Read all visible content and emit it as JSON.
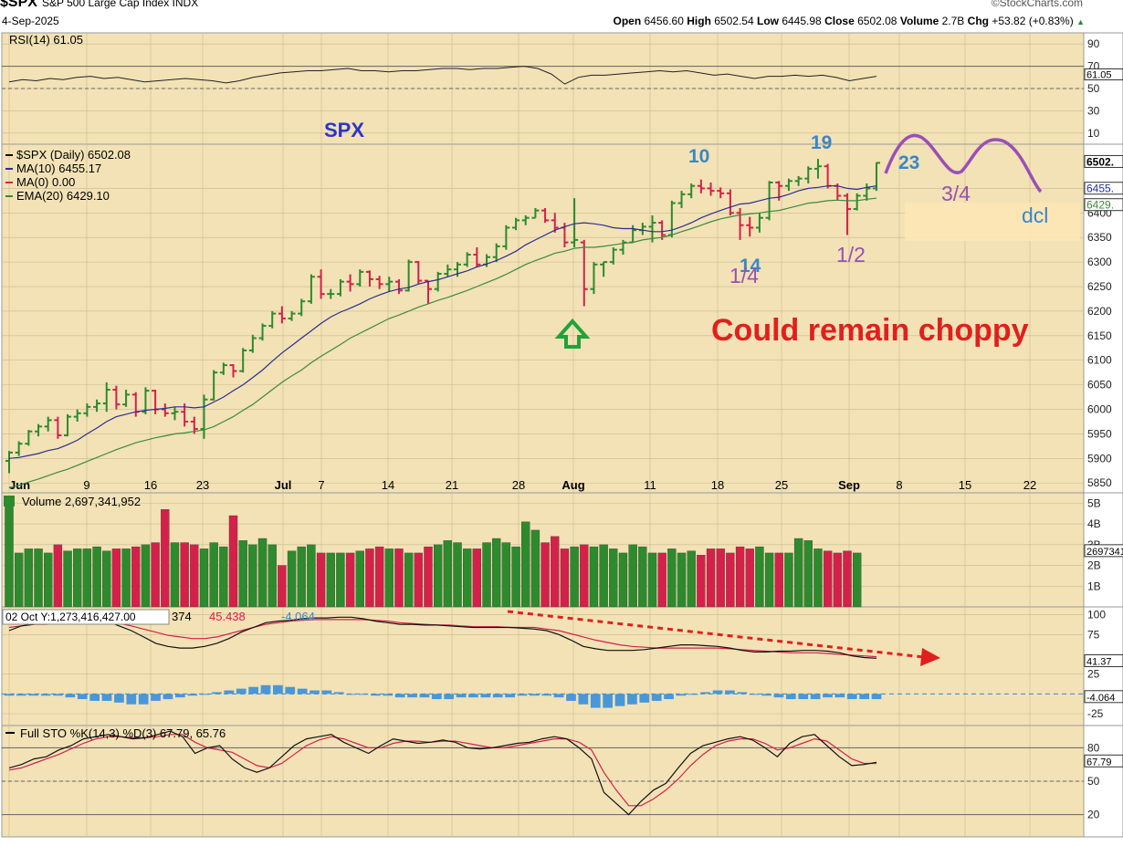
{
  "header": {
    "symbol": "$SPX",
    "name": "S&P 500 Large Cap Index  INDX",
    "date": "4-Sep-2025",
    "open_label": "Open",
    "open": "6456.60",
    "high_label": "High",
    "high": "6502.54",
    "low_label": "Low",
    "low": "6445.98",
    "close_label": "Close",
    "close": "6502.08",
    "volume_label": "Volume",
    "volume": "2.7B",
    "chg_label": "Chg",
    "chg": "+53.82 (+0.83%)",
    "brand": "©StockCharts.com"
  },
  "colors": {
    "up": "#2d8a2d",
    "down": "#d4214a",
    "panel_bg": "#f2e2b6",
    "ma10": "#2a2f8f",
    "ema20": "#3d8a3d",
    "annot_purple": "#9b4fb5",
    "annot_blue": "#3a86c8",
    "annot_red": "#e0201c"
  },
  "chart_data": [
    {
      "type": "line",
      "panel": "RSI",
      "legend": "RSI(14) 61.05",
      "y_ticks": [
        "90",
        "70",
        "50",
        "30",
        "10"
      ],
      "last_label": "61.05",
      "ylim": [
        0,
        100
      ],
      "values": [
        56,
        58,
        57,
        59,
        58,
        60,
        61,
        59,
        60,
        58,
        56,
        57,
        58,
        59,
        58,
        57,
        55,
        57,
        60,
        62,
        64,
        65,
        66,
        66,
        67,
        68,
        66,
        66,
        65,
        66,
        66,
        67,
        68,
        68,
        67,
        68,
        68,
        69,
        70,
        68,
        63,
        54,
        60,
        62,
        62,
        63,
        64,
        65,
        66,
        65,
        66,
        64,
        62,
        63,
        61,
        59,
        61,
        61,
        62,
        61,
        62,
        60,
        57,
        59,
        61
      ]
    },
    {
      "type": "candlestick",
      "panel": "price",
      "title": "SPX",
      "legend": [
        "$SPX (Daily) 6502.08",
        "MA(10) 6455.17",
        "MA(0) 0.00",
        "EMA(20) 6429.10"
      ],
      "x_labels": [
        "Jun",
        "9",
        "16",
        "23",
        "Jul",
        "7",
        "14",
        "21",
        "28",
        "Aug",
        "11",
        "18",
        "25",
        "Sep",
        "8",
        "15",
        "22"
      ],
      "y_ticks": [
        "6450",
        "6400",
        "6350",
        "6300",
        "6250",
        "6200",
        "6150",
        "6100",
        "6050",
        "6000",
        "5950",
        "5900",
        "5850"
      ],
      "last_labels": [
        "6502.",
        "6455.",
        "6429."
      ],
      "ylim": [
        5830,
        6540
      ],
      "bars": [
        [
          5895,
          5915,
          5870,
          5912
        ],
        [
          5912,
          5935,
          5905,
          5930
        ],
        [
          5930,
          5958,
          5926,
          5955
        ],
        [
          5955,
          5970,
          5945,
          5965
        ],
        [
          5965,
          5985,
          5955,
          5978
        ],
        [
          5978,
          5985,
          5940,
          5947
        ],
        [
          5947,
          5990,
          5945,
          5985
        ],
        [
          5985,
          6000,
          5975,
          5992
        ],
        [
          5992,
          6012,
          5985,
          6005
        ],
        [
          6005,
          6020,
          5995,
          6012
        ],
        [
          6012,
          6055,
          5995,
          6040
        ],
        [
          6040,
          6048,
          6000,
          6010
        ],
        [
          6010,
          6040,
          6005,
          6030
        ],
        [
          6030,
          6035,
          5985,
          5995
        ],
        [
          5995,
          6045,
          5990,
          6038
        ],
        [
          6038,
          6040,
          5990,
          6000
        ],
        [
          6000,
          6012,
          5985,
          5992
        ],
        [
          5992,
          6005,
          5978,
          5995
        ],
        [
          5995,
          6012,
          5965,
          5975
        ],
        [
          5975,
          5985,
          5950,
          5960
        ],
        [
          5960,
          6030,
          5940,
          6020
        ],
        [
          6020,
          6080,
          6018,
          6075
        ],
        [
          6075,
          6095,
          6070,
          6090
        ],
        [
          6090,
          6092,
          6065,
          6078
        ],
        [
          6078,
          6125,
          6075,
          6120
        ],
        [
          6120,
          6152,
          6115,
          6145
        ],
        [
          6145,
          6175,
          6140,
          6170
        ],
        [
          6170,
          6200,
          6165,
          6195
        ],
        [
          6195,
          6210,
          6175,
          6185
        ],
        [
          6185,
          6200,
          6180,
          6195
        ],
        [
          6195,
          6225,
          6190,
          6220
        ],
        [
          6220,
          6275,
          6215,
          6270
        ],
        [
          6270,
          6285,
          6225,
          6235
        ],
        [
          6235,
          6245,
          6225,
          6235
        ],
        [
          6235,
          6265,
          6230,
          6260
        ],
        [
          6260,
          6275,
          6240,
          6255
        ],
        [
          6255,
          6285,
          6250,
          6280
        ],
        [
          6280,
          6283,
          6250,
          6265
        ],
        [
          6265,
          6272,
          6245,
          6255
        ],
        [
          6255,
          6270,
          6240,
          6260
        ],
        [
          6260,
          6265,
          6235,
          6242
        ],
        [
          6242,
          6305,
          6240,
          6300
        ],
        [
          6300,
          6302,
          6255,
          6262
        ],
        [
          6262,
          6262,
          6215,
          6245
        ],
        [
          6245,
          6280,
          6240,
          6276
        ],
        [
          6276,
          6295,
          6270,
          6285
        ],
        [
          6285,
          6300,
          6270,
          6295
        ],
        [
          6295,
          6320,
          6290,
          6315
        ],
        [
          6315,
          6330,
          6290,
          6295
        ],
        [
          6295,
          6316,
          6290,
          6310
        ],
        [
          6310,
          6338,
          6300,
          6332
        ],
        [
          6332,
          6375,
          6325,
          6370
        ],
        [
          6370,
          6390,
          6365,
          6385
        ],
        [
          6385,
          6395,
          6375,
          6390
        ],
        [
          6390,
          6410,
          6390,
          6405
        ],
        [
          6405,
          6410,
          6380,
          6385
        ],
        [
          6385,
          6400,
          6360,
          6370
        ],
        [
          6370,
          6380,
          6330,
          6340
        ],
        [
          6340,
          6430,
          6330,
          6345
        ],
        [
          6340,
          6345,
          6210,
          6245
        ],
        [
          6245,
          6300,
          6235,
          6295
        ],
        [
          6295,
          6300,
          6270,
          6300
        ],
        [
          6300,
          6330,
          6295,
          6325
        ],
        [
          6325,
          6345,
          6315,
          6340
        ],
        [
          6340,
          6375,
          6340,
          6365
        ],
        [
          6365,
          6380,
          6355,
          6372
        ],
        [
          6372,
          6395,
          6340,
          6380
        ],
        [
          6380,
          6385,
          6345,
          6355
        ],
        [
          6355,
          6425,
          6350,
          6420
        ],
        [
          6420,
          6445,
          6410,
          6438
        ],
        [
          6438,
          6460,
          6430,
          6455
        ],
        [
          6455,
          6468,
          6440,
          6450
        ],
        [
          6450,
          6462,
          6435,
          6445
        ],
        [
          6445,
          6452,
          6430,
          6440
        ],
        [
          6440,
          6448,
          6395,
          6400
        ],
        [
          6400,
          6410,
          6345,
          6375
        ],
        [
          6375,
          6392,
          6352,
          6370
        ],
        [
          6370,
          6400,
          6360,
          6390
        ],
        [
          6390,
          6465,
          6385,
          6462
        ],
        [
          6462,
          6465,
          6425,
          6455
        ],
        [
          6455,
          6470,
          6445,
          6465
        ],
        [
          6465,
          6475,
          6455,
          6470
        ],
        [
          6470,
          6495,
          6460,
          6490
        ],
        [
          6490,
          6510,
          6470,
          6495
        ],
        [
          6495,
          6500,
          6450,
          6455
        ],
        [
          6455,
          6460,
          6425,
          6435
        ],
        [
          6435,
          6440,
          6355,
          6408
        ],
        [
          6408,
          6440,
          6405,
          6435
        ],
        [
          6435,
          6460,
          6425,
          6450
        ],
        [
          6450,
          6503,
          6445,
          6502
        ]
      ],
      "ma10": [
        5900,
        5902,
        5906,
        5910,
        5916,
        5920,
        5928,
        5937,
        5950,
        5962,
        5975,
        5985,
        5990,
        5995,
        5998,
        6000,
        6002,
        6005,
        6005,
        6003,
        6005,
        6015,
        6025,
        6038,
        6050,
        6065,
        6080,
        6098,
        6115,
        6130,
        6145,
        6160,
        6175,
        6188,
        6198,
        6206,
        6215,
        6225,
        6233,
        6240,
        6245,
        6248,
        6255,
        6260,
        6264,
        6270,
        6276,
        6282,
        6290,
        6296,
        6303,
        6312,
        6322,
        6335,
        6345,
        6355,
        6365,
        6372,
        6378,
        6380,
        6378,
        6375,
        6370,
        6368,
        6368,
        6365,
        6362,
        6362,
        6365,
        6372,
        6380,
        6390,
        6398,
        6405,
        6412,
        6418,
        6420,
        6425,
        6430,
        6432,
        6438,
        6445,
        6450,
        6452,
        6455,
        6455,
        6450,
        6448,
        6452,
        6455
      ],
      "ema20": [
        5840,
        5845,
        5852,
        5858,
        5865,
        5872,
        5878,
        5886,
        5894,
        5902,
        5910,
        5918,
        5925,
        5932,
        5937,
        5942,
        5946,
        5950,
        5952,
        5955,
        5958,
        5965,
        5975,
        5985,
        5998,
        6010,
        6025,
        6040,
        6055,
        6068,
        6080,
        6095,
        6108,
        6120,
        6132,
        6145,
        6155,
        6165,
        6175,
        6185,
        6192,
        6200,
        6208,
        6215,
        6222,
        6228,
        6235,
        6242,
        6250,
        6258,
        6266,
        6275,
        6285,
        6295,
        6303,
        6310,
        6318,
        6322,
        6328,
        6330,
        6330,
        6332,
        6335,
        6338,
        6340,
        6345,
        6348,
        6350,
        6355,
        6362,
        6368,
        6375,
        6382,
        6388,
        6392,
        6396,
        6398,
        6400,
        6403,
        6405,
        6410,
        6415,
        6420,
        6422,
        6425,
        6426,
        6425,
        6425,
        6428,
        6430
      ]
    },
    {
      "type": "bar",
      "panel": "volume",
      "legend": "Volume 2,697,341,952",
      "y_ticks": [
        "5B",
        "4B",
        "3B",
        "2B",
        "1B"
      ],
      "last_label": "2697341",
      "ylim": [
        0,
        5.5
      ],
      "values": [
        5.1,
        2.6,
        2.8,
        2.8,
        2.6,
        3.0,
        2.7,
        2.8,
        2.8,
        2.9,
        2.7,
        2.8,
        2.8,
        2.9,
        3.0,
        3.1,
        4.7,
        3.1,
        3.1,
        3.0,
        2.8,
        3.1,
        2.9,
        4.4,
        3.2,
        3.0,
        3.3,
        3.0,
        2.0,
        2.7,
        2.9,
        3.0,
        2.6,
        2.6,
        2.6,
        2.6,
        2.7,
        2.8,
        2.9,
        2.8,
        2.8,
        2.6,
        2.6,
        2.9,
        3.0,
        3.2,
        3.1,
        2.8,
        2.8,
        3.1,
        3.3,
        3.1,
        2.9,
        4.1,
        3.7,
        3.1,
        3.4,
        2.8,
        2.9,
        3.0,
        2.9,
        3.0,
        2.8,
        2.6,
        3.0,
        2.9,
        2.6,
        2.6,
        2.8,
        2.6,
        2.7,
        2.5,
        2.8,
        2.8,
        2.6,
        2.9,
        2.8,
        2.9,
        2.6,
        2.6,
        2.6,
        3.3,
        3.2,
        2.8,
        2.7,
        2.6,
        2.7,
        2.6
      ]
    },
    {
      "type": "line",
      "panel": "oscillator",
      "legend_values": [
        "374",
        "45.438",
        "-4.064"
      ],
      "tooltip": "02 Oct Y:1,273,416,427.00",
      "y_ticks": [
        "100",
        "75",
        "25",
        "-25"
      ],
      "last_labels": [
        "41.37",
        "-4.064"
      ],
      "ylim": [
        -40,
        110
      ]
    },
    {
      "type": "line",
      "panel": "stochastic",
      "legend": "Full STO %K(14,3) %D(3) 67.79, 65.76",
      "y_ticks": [
        "80",
        "50",
        "20"
      ],
      "last_label": "67.79",
      "ylim": [
        0,
        100
      ],
      "k": [
        62,
        65,
        70,
        72,
        78,
        82,
        88,
        90,
        92,
        90,
        88,
        89,
        92,
        95,
        90,
        75,
        80,
        82,
        70,
        62,
        58,
        62,
        72,
        82,
        88,
        90,
        92,
        85,
        80,
        75,
        82,
        88,
        86,
        84,
        85,
        87,
        85,
        80,
        79,
        80,
        82,
        84,
        85,
        88,
        90,
        88,
        80,
        70,
        40,
        30,
        20,
        32,
        42,
        48,
        62,
        75,
        82,
        85,
        88,
        90,
        87,
        80,
        72,
        84,
        90,
        92,
        82,
        72,
        64,
        65,
        67
      ],
      "d": [
        60,
        62,
        66,
        70,
        74,
        79,
        84,
        88,
        90,
        90,
        89,
        89,
        90,
        92,
        92,
        85,
        80,
        78,
        76,
        70,
        64,
        62,
        66,
        74,
        82,
        87,
        90,
        88,
        84,
        80,
        80,
        84,
        86,
        86,
        85,
        86,
        86,
        84,
        82,
        80,
        80,
        82,
        84,
        86,
        88,
        88,
        85,
        78,
        58,
        42,
        28,
        28,
        34,
        42,
        52,
        64,
        74,
        82,
        86,
        88,
        88,
        84,
        78,
        80,
        84,
        88,
        86,
        78,
        70,
        66,
        66
      ]
    }
  ],
  "annotations": {
    "spx_title": "SPX",
    "wave_10": "10",
    "wave_14": "14",
    "wave_19": "19",
    "wave_23": "23",
    "cycle_1_4": "1/4",
    "cycle_1_2": "1/2",
    "cycle_3_4": "3/4",
    "dcl": "dcl",
    "choppy_note": "Could remain choppy"
  }
}
